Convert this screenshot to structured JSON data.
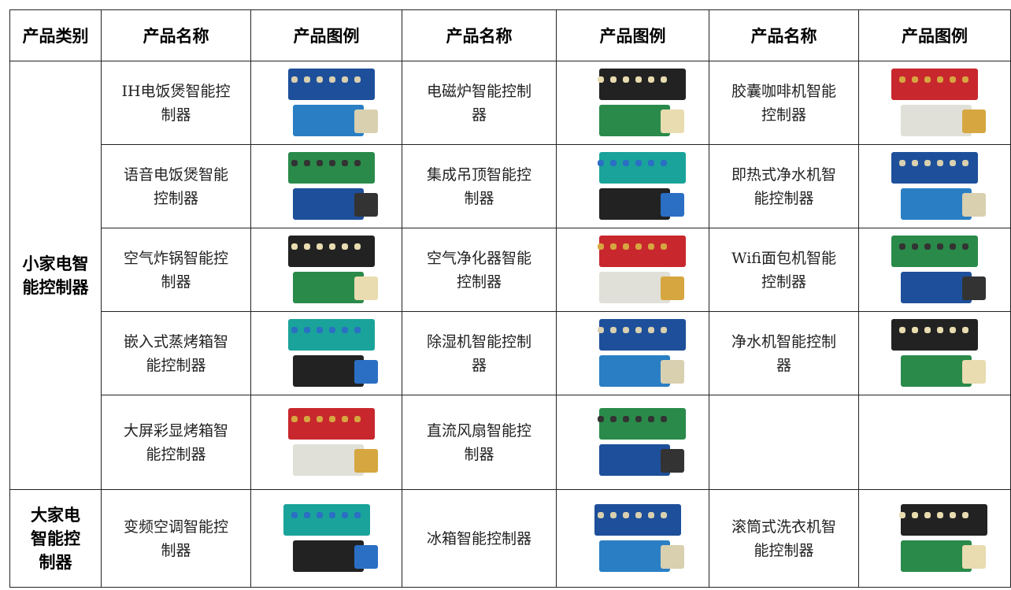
{
  "table": {
    "header": [
      "产品类别",
      "产品名称",
      "产品图例",
      "产品名称",
      "产品图例",
      "产品名称",
      "产品图例"
    ],
    "groups": [
      {
        "category": "小家电智能控制器",
        "rows": [
          [
            "IH电饭煲智能控制器",
            "电磁炉智能控制器",
            "胶囊咖啡机智能控制器"
          ],
          [
            "语音电饭煲智能控制器",
            "集成吊顶智能控制器",
            "即热式净水机智能控制器"
          ],
          [
            "空气炸锅智能控制器",
            "空气净化器智能控制器",
            "Wifi面包机智能控制器"
          ],
          [
            "嵌入式蒸烤箱智能控制器",
            "除湿机智能控制器",
            "净水机智能控制器"
          ],
          [
            "大屏彩显烤箱智能控制器",
            "直流风扇智能控制器",
            null
          ]
        ]
      },
      {
        "category": "大家电智能控制器",
        "rows": [
          [
            "变频空调智能控制器",
            "冰箱智能控制器",
            "滚筒式洗衣机智能控制器"
          ]
        ]
      }
    ]
  }
}
